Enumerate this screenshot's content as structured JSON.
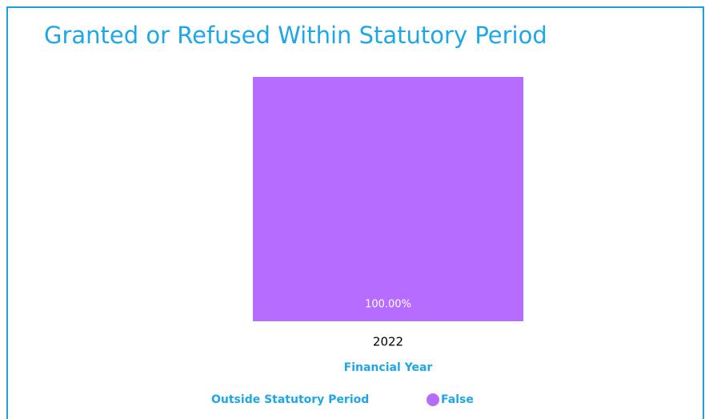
{
  "chart_data": {
    "type": "stacked_bar_percent",
    "title": "Granted or Refused Within Statutory Period",
    "x_label": "Financial Year",
    "legend_title": "Outside Statutory Period",
    "categories": [
      "2022"
    ],
    "series": [
      {
        "name": "False",
        "color": "#b66dff",
        "values": [
          100
        ],
        "value_labels": [
          "100.00%"
        ]
      }
    ]
  }
}
